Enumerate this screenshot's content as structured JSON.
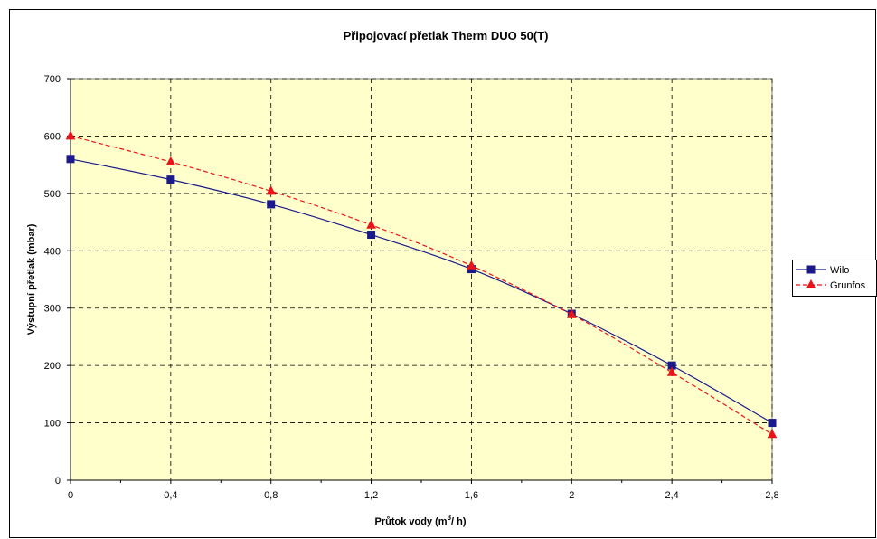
{
  "chart_data": {
    "type": "line",
    "title": "Připojovací přetlak Therm DUO 50(T)",
    "xlabel": {
      "main": "Průtok vody (m",
      "sup": "3",
      "rest": "/ h)"
    },
    "ylabel": "Výstupní přetlak (mbar)",
    "xlim": [
      0,
      2.8
    ],
    "ylim": [
      0,
      700
    ],
    "x_ticks": [
      0,
      0.4,
      0.8,
      1.2,
      1.6,
      2,
      2.4,
      2.8
    ],
    "x_tick_labels": [
      "0",
      "0,4",
      "0,8",
      "1,2",
      "1,6",
      "2",
      "2,4",
      "2,8"
    ],
    "y_ticks": [
      0,
      100,
      200,
      300,
      400,
      500,
      600,
      700
    ],
    "y_tick_labels": [
      "0",
      "100",
      "200",
      "300",
      "400",
      "500",
      "600",
      "700"
    ],
    "grid": true,
    "legend_position": "right",
    "plot_background": "#ffffcc",
    "series": [
      {
        "name": "Wilo",
        "color": "#1a1a8c",
        "marker": "square",
        "line": "solid",
        "x": [
          0,
          0.4,
          0.8,
          1.2,
          1.6,
          2,
          2.4,
          2.8
        ],
        "values": [
          560,
          524,
          481,
          428,
          368,
          290,
          200,
          100
        ]
      },
      {
        "name": "Grunfos",
        "color": "#e8141a",
        "marker": "triangle",
        "line": "dashed",
        "x": [
          0,
          0.4,
          0.8,
          1.2,
          1.6,
          2,
          2.4,
          2.8
        ],
        "values": [
          600,
          555,
          504,
          445,
          374,
          289,
          188,
          80
        ]
      }
    ]
  }
}
